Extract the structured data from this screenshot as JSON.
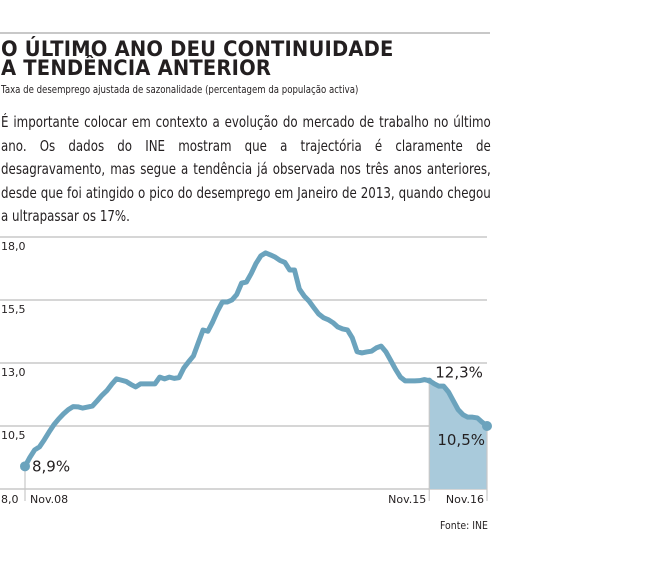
{
  "header": {
    "title_line1": "O ÚLTIMO ANO DEU CONTINUIDADE",
    "title_line2": "A TENDÊNCIA ANTERIOR",
    "subtitle": "Taxa de desemprego ajustada de sazonalidade (percentagem da população activa)"
  },
  "body_text": "É importante colocar em contexto a evolução do mercado de trabalho no último ano. Os dados do INE mostram que a trajectória é claramente de desagravamento, mas segue a tendência já observada nos três anos anteriores, desde que foi atingido o pico do desemprego em Janeiro de 2013, quando chegou a ultrapassar os 17%.",
  "source": "Fonte: INE",
  "colors": {
    "line": "#6ba3bd",
    "highlight_fill": "#a9cadb",
    "grid": "#c8c8c8",
    "text": "#231f20"
  },
  "chart_data": {
    "type": "line",
    "title": "O ÚLTIMO ANO DEU CONTINUIDADE A TENDÊNCIA ANTERIOR",
    "subtitle": "Taxa de desemprego ajustada de sazonalidade (percentagem da população activa)",
    "xlabel": "",
    "ylabel": "",
    "x_start": "Nov.08",
    "x_end": "Nov.16",
    "x_unit": "month index from Nov.08",
    "xlim": [
      0,
      96
    ],
    "ylim": [
      8.0,
      18.0
    ],
    "yticks": [
      8.0,
      10.5,
      13.0,
      15.5,
      18.0
    ],
    "ytick_labels": [
      "8,0",
      "10,5",
      "13,0",
      "15,5",
      "18,0"
    ],
    "xticks": [
      {
        "x": 0,
        "label": "Nov.08"
      },
      {
        "x": 84,
        "label": "Nov.15"
      },
      {
        "x": 96,
        "label": "Nov.16"
      }
    ],
    "grid": true,
    "highlight_range": [
      84,
      96
    ],
    "series": [
      {
        "name": "Taxa de desemprego",
        "x": [
          0,
          1,
          2,
          3,
          4,
          5,
          6,
          7,
          8,
          9,
          10,
          11,
          12,
          13,
          14,
          15,
          16,
          17,
          18,
          19,
          20,
          21,
          22,
          23,
          24,
          25,
          26,
          27,
          28,
          29,
          30,
          31,
          32,
          33,
          34,
          35,
          36,
          37,
          38,
          39,
          40,
          41,
          42,
          43,
          44,
          45,
          46,
          47,
          48,
          49,
          50,
          51,
          52,
          53,
          54,
          55,
          56,
          57,
          58,
          59,
          60,
          61,
          62,
          63,
          64,
          65,
          66,
          67,
          68,
          69,
          70,
          71,
          72,
          73,
          74,
          75,
          76,
          77,
          78,
          79,
          80,
          81,
          82,
          83,
          84,
          85,
          86,
          87,
          88,
          89,
          90,
          91,
          92,
          93,
          94,
          95,
          96
        ],
        "values": [
          8.9,
          9.25,
          9.55,
          9.67,
          9.95,
          10.26,
          10.55,
          10.78,
          10.98,
          11.15,
          11.27,
          11.26,
          11.21,
          11.25,
          11.29,
          11.5,
          11.72,
          11.9,
          12.15,
          12.37,
          12.32,
          12.27,
          12.15,
          12.05,
          12.17,
          12.17,
          12.17,
          12.17,
          12.44,
          12.37,
          12.44,
          12.39,
          12.42,
          12.8,
          13.05,
          13.28,
          13.8,
          14.31,
          14.26,
          14.63,
          15.06,
          15.42,
          15.42,
          15.5,
          15.72,
          16.17,
          16.21,
          16.55,
          16.95,
          17.25,
          17.37,
          17.29,
          17.2,
          17.07,
          16.99,
          16.69,
          16.69,
          15.94,
          15.66,
          15.46,
          15.2,
          14.95,
          14.8,
          14.72,
          14.6,
          14.43,
          14.35,
          14.31,
          14.0,
          13.45,
          13.4,
          13.44,
          13.47,
          13.6,
          13.67,
          13.44,
          13.1,
          12.75,
          12.44,
          12.29,
          12.29,
          12.29,
          12.3,
          12.34,
          12.3,
          12.18,
          12.08,
          12.08,
          11.85,
          11.5,
          11.15,
          10.95,
          10.85,
          10.85,
          10.82,
          10.65,
          10.5
        ]
      }
    ],
    "annotations": [
      {
        "x": 0,
        "value": 8.9,
        "label": "8,9%"
      },
      {
        "x": 84,
        "value": 12.3,
        "label": "12,3%"
      },
      {
        "x": 96,
        "value": 10.5,
        "label": "10,5%"
      }
    ]
  }
}
